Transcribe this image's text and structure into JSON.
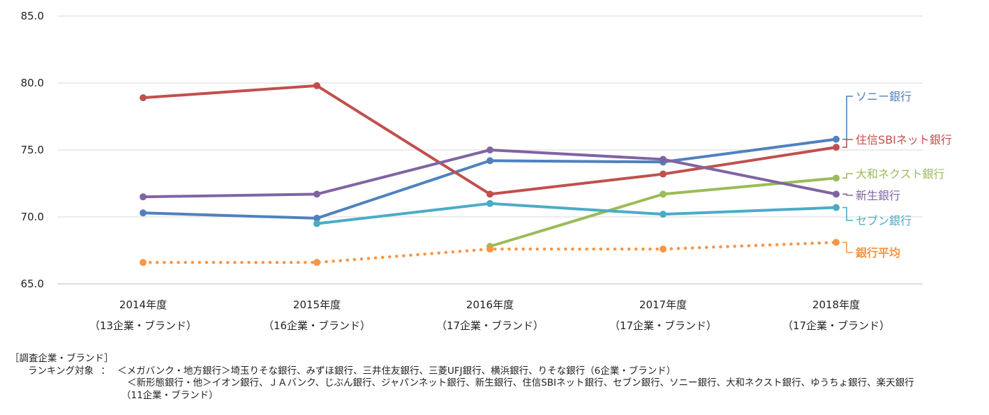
{
  "chart_data": {
    "type": "line",
    "title": "",
    "xlabel": "",
    "ylabel": "",
    "ylim": [
      65,
      85
    ],
    "yticks": [
      "65.0",
      "70.0",
      "75.0",
      "80.0",
      "85.0"
    ],
    "categories": [
      {
        "year": "2014年度",
        "sub": "（13企業・ブランド）"
      },
      {
        "year": "2015年度",
        "sub": "（16企業・ブランド）"
      },
      {
        "year": "2016年度",
        "sub": "（17企業・ブランド）"
      },
      {
        "year": "2017年度",
        "sub": "（17企業・ブランド）"
      },
      {
        "year": "2018年度",
        "sub": "（17企業・ブランド）"
      }
    ],
    "grid": "horizontal",
    "legend": "right-end labels",
    "series": [
      {
        "name": "ソニー銀行",
        "color": "#4f81bd",
        "dotted": false,
        "bold": false,
        "values": [
          70.3,
          69.9,
          74.2,
          74.1,
          75.8
        ]
      },
      {
        "name": "住信SBIネット銀行",
        "color": "#c0504d",
        "dotted": false,
        "bold": false,
        "values": [
          78.9,
          79.8,
          71.7,
          73.2,
          75.2
        ]
      },
      {
        "name": "大和ネクスト銀行",
        "color": "#9bbb59",
        "dotted": false,
        "bold": false,
        "values": [
          null,
          null,
          67.8,
          71.7,
          72.9
        ]
      },
      {
        "name": "新生銀行",
        "color": "#8064a2",
        "dotted": false,
        "bold": false,
        "values": [
          71.5,
          71.7,
          75.0,
          74.3,
          71.7
        ]
      },
      {
        "name": "セブン銀行",
        "color": "#4bacc6",
        "dotted": false,
        "bold": false,
        "values": [
          null,
          69.5,
          71.0,
          70.2,
          70.7
        ]
      },
      {
        "name": "銀行平均",
        "color": "#f79646",
        "dotted": true,
        "bold": true,
        "values": [
          66.6,
          66.6,
          67.6,
          67.6,
          68.1
        ]
      }
    ]
  },
  "notes": {
    "heading": "［調査企業・ブランド］",
    "label": "ランキング対象",
    "colon": "：",
    "line1": "＜メガバンク・地方銀行＞埼玉りそな銀行、みずほ銀行、三井住友銀行、三菱UFJ銀行、横浜銀行、りそな銀行（6企業・ブランド）",
    "line2": "＜新形態銀行・他＞イオン銀行、ＪＡバンク、じぶん銀行、ジャパンネット銀行、新生銀行、住信SBIネット銀行、セブン銀行、ソニー銀行、大和ネクスト銀行、ゆうちょ銀行、楽天銀行",
    "line3": "（11企業・ブランド）"
  }
}
